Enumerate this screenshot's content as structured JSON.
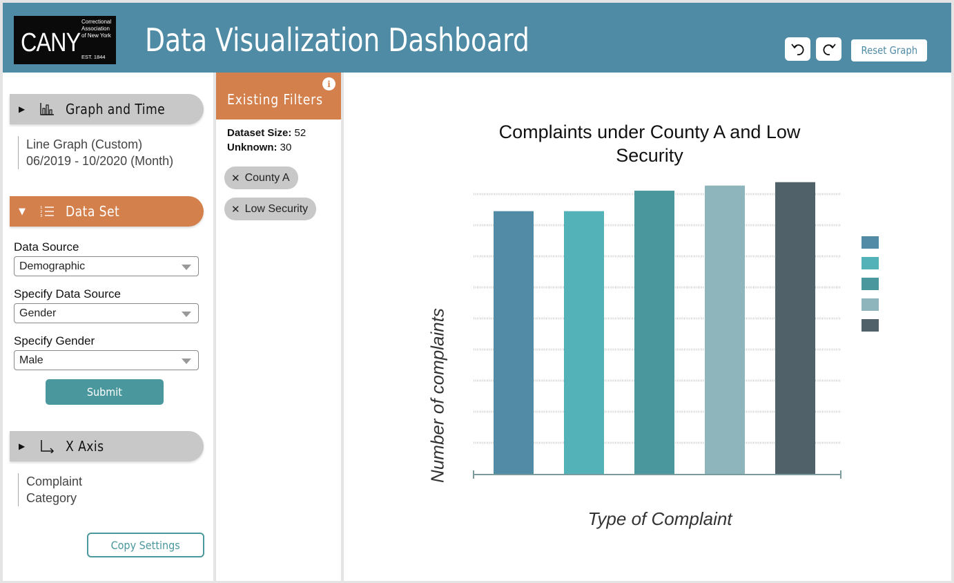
{
  "header": {
    "logo_text": "CANY",
    "logo_org_lines": [
      "Correctional",
      "Association",
      "of New York"
    ],
    "logo_est": "EST. 1844",
    "title": "Data Visualization Dashboard",
    "undo_icon": "undo-icon",
    "redo_icon": "redo-icon",
    "reset_label": "Reset Graph"
  },
  "sidebar": {
    "graph_time": {
      "label": "Graph and Time",
      "icon": "bar-chart-icon",
      "expanded": false,
      "summary_line1": "Line Graph (Custom)",
      "summary_line2": "06/2019 - 10/2020 (Month)"
    },
    "data_set": {
      "label": "Data Set",
      "icon": "numbered-list-icon",
      "expanded": true,
      "data_source_label": "Data Source",
      "data_source_value": "Demographic",
      "specify_source_label": "Specify Data Source",
      "specify_source_value": "Gender",
      "specify_gender_label": "Specify Gender",
      "specify_gender_value": "Male",
      "submit_label": "Submit"
    },
    "x_axis": {
      "label": "X Axis",
      "icon": "axis-arrow-icon",
      "expanded": false,
      "summary_line1": "Complaint",
      "summary_line2": "Category"
    },
    "copy_label": "Copy Settings"
  },
  "filters": {
    "title": "Existing Filters",
    "info_icon": "info-icon",
    "dataset_size_label": "Dataset Size:",
    "dataset_size_value": "52",
    "unknown_label": "Unknown:",
    "unknown_value": "30",
    "chips": [
      {
        "label": "County A"
      },
      {
        "label": "Low Security"
      }
    ]
  },
  "chart_data": {
    "type": "bar",
    "title": "Complaints under County A and Low Security",
    "xlabel": "Type of Complaint",
    "ylabel": "Number of complaints",
    "categories": [
      "",
      "",
      "",
      "",
      ""
    ],
    "values": [
      7.7,
      7.7,
      8.3,
      8.45,
      8.55
    ],
    "ylim": [
      0,
      8.2
    ],
    "grid": true,
    "legend_position": "right",
    "colors": [
      "#518ba5",
      "#52b2b8",
      "#4a979d",
      "#8eb5bc",
      "#50616a"
    ]
  }
}
